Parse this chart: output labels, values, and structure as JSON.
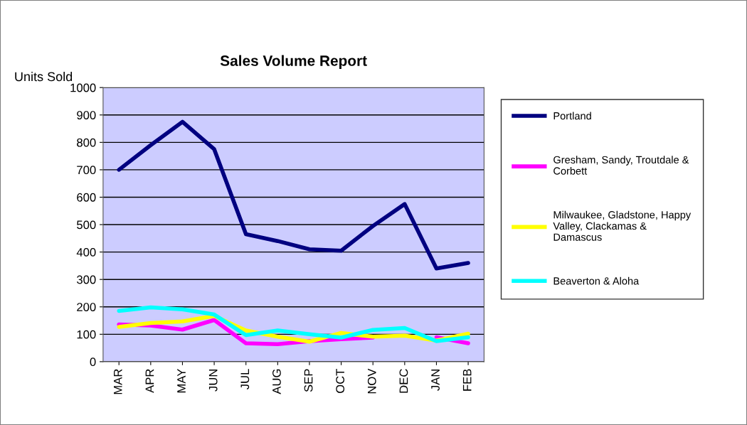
{
  "chart_data": {
    "type": "line",
    "title": "Sales Volume Report",
    "ylabel": "Units Sold",
    "categories": [
      "MAR",
      "APR",
      "MAY",
      "JUN",
      "JUL",
      "AUG",
      "SEP",
      "OCT",
      "NOV",
      "DEC",
      "JAN",
      "FEB"
    ],
    "series": [
      {
        "name": "Portland",
        "color": "#000080",
        "values": [
          700,
          790,
          875,
          775,
          465,
          440,
          410,
          405,
          495,
          575,
          340,
          360
        ]
      },
      {
        "name": "Gresham, Sandy, Troutdale &\nCorbett",
        "color": "#ff00ff",
        "values": [
          136,
          132,
          117,
          152,
          67,
          64,
          75,
          82,
          88,
          null,
          89,
          67
        ]
      },
      {
        "name": "Milwaukee, Gladstone, Happy\nValley, Clackamas &\nDamascus",
        "color": "#ffff00",
        "values": [
          127,
          141,
          147,
          167,
          114,
          91,
          73,
          105,
          91,
          95,
          77,
          102
        ]
      },
      {
        "name": "Beaverton & Aloha",
        "color": "#00ffff",
        "values": [
          185,
          198,
          191,
          172,
          97,
          114,
          100,
          88,
          116,
          123,
          75,
          89
        ]
      }
    ],
    "ylim": [
      0,
      1000
    ],
    "yticks": [
      0,
      100,
      200,
      300,
      400,
      500,
      600,
      700,
      800,
      900,
      1000
    ],
    "grid": "y",
    "legend": "right",
    "marker": "none",
    "line_style": "solid"
  }
}
